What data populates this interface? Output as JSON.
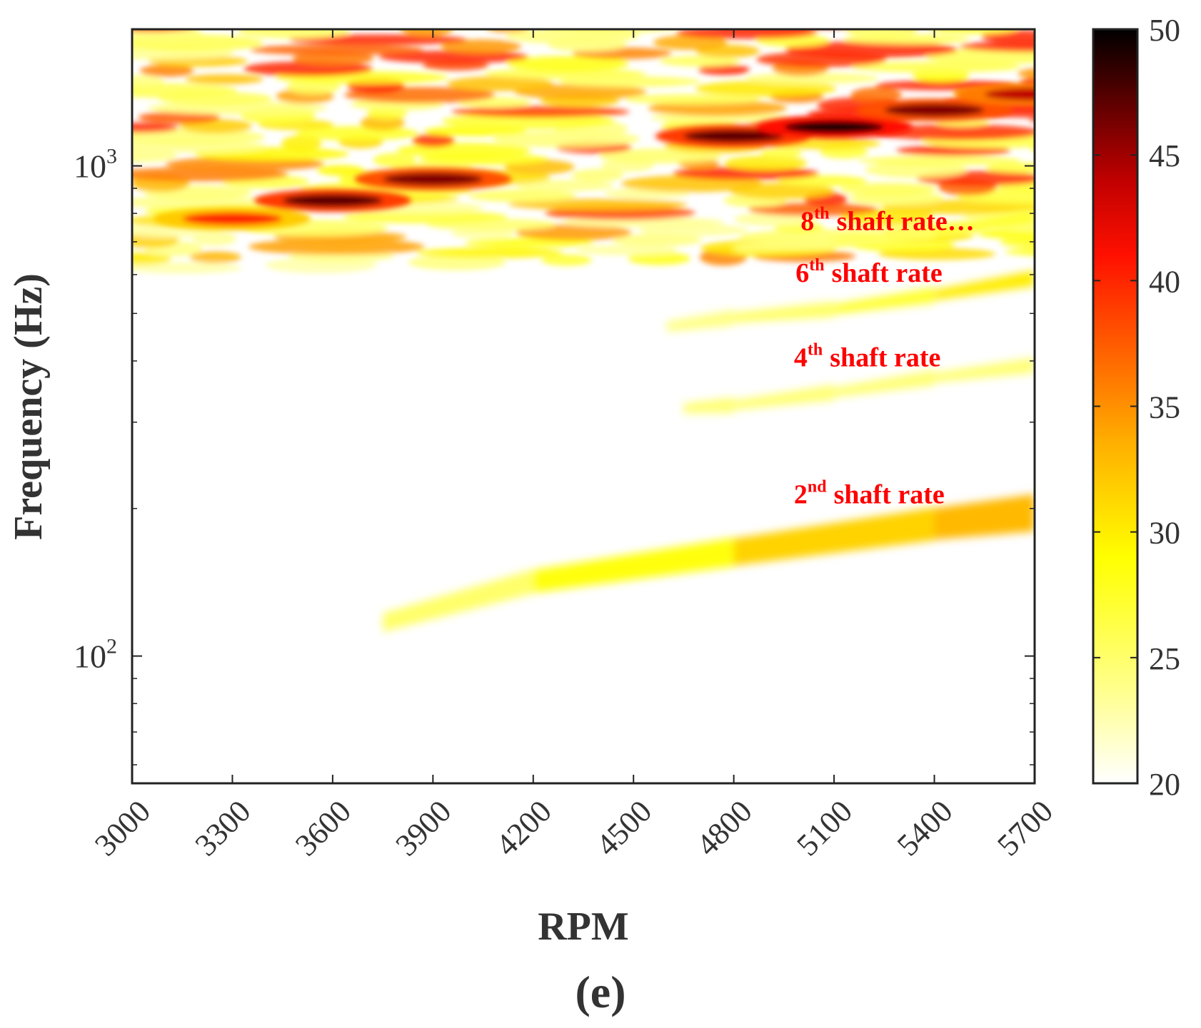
{
  "panel_label": "(e)",
  "chart_data": {
    "type": "heatmap",
    "title": "",
    "xlabel": "RPM",
    "ylabel": "Frequency (Hz)",
    "x_ticks": [
      "3000",
      "3300",
      "3600",
      "3900",
      "4200",
      "4500",
      "4800",
      "5100",
      "5400",
      "5700"
    ],
    "xlim": [
      3000,
      5700
    ],
    "y_scale": "log",
    "ylim": [
      55,
      1900
    ],
    "y_ticks": [
      {
        "value": 100,
        "base": "10",
        "exp": "2"
      },
      {
        "value": 1000,
        "base": "10",
        "exp": "3"
      }
    ],
    "colorbar": {
      "min": 20,
      "max": 50,
      "ticks": [
        "20",
        "25",
        "30",
        "35",
        "40",
        "45",
        "50"
      ],
      "colormap": "hot (reversed)",
      "colors": [
        "#ffffff",
        "#ffff40",
        "#ffd000",
        "#ff8000",
        "#ff2000",
        "#c00000",
        "#600000",
        "#000000"
      ]
    },
    "annotations": [
      {
        "order": "8",
        "sup": "th",
        "text": "shaft rate…",
        "x_rpm": 5000,
        "y_hz": 740,
        "color": "#ff0000"
      },
      {
        "order": "6",
        "sup": "th",
        "text": "shaft rate",
        "x_rpm": 4985,
        "y_hz": 580,
        "color": "#ff0000"
      },
      {
        "order": "4",
        "sup": "th",
        "text": "shaft rate",
        "x_rpm": 4980,
        "y_hz": 390,
        "color": "#ff0000"
      },
      {
        "order": "2",
        "sup": "nd",
        "text": "shaft rate",
        "x_rpm": 4980,
        "y_hz": 205,
        "color": "#ff0000"
      }
    ],
    "ridges": [
      {
        "name": "2nd shaft rate",
        "rpm": [
          3750,
          4200,
          4800,
          5400,
          5700
        ],
        "freq_hz": [
          117,
          142,
          163,
          186,
          196
        ],
        "level": [
          23,
          27,
          30,
          33,
          33
        ]
      },
      {
        "name": "4th shaft rate",
        "rpm": [
          4650,
          4800,
          5100,
          5400,
          5700
        ],
        "freq_hz": [
          320,
          325,
          345,
          370,
          392
        ],
        "level": [
          24,
          25,
          24,
          25,
          24
        ]
      },
      {
        "name": "6th shaft rate",
        "rpm": [
          4600,
          4800,
          5100,
          5400,
          5700
        ],
        "freq_hz": [
          470,
          490,
          510,
          545,
          590
        ],
        "level": [
          24,
          24,
          26,
          28,
          32
        ]
      },
      {
        "name": "8th shaft rate",
        "rpm": [
          4800,
          5100,
          5400,
          5700
        ],
        "freq_hz": [
          680,
          700,
          730,
          790
        ],
        "level": [
          24,
          25,
          26,
          28
        ]
      }
    ],
    "hot_spots": [
      {
        "rpm": 3600,
        "freq_hz": 850,
        "level": 47
      },
      {
        "rpm": 3900,
        "freq_hz": 940,
        "level": 46
      },
      {
        "rpm": 4800,
        "freq_hz": 1150,
        "level": 47
      },
      {
        "rpm": 5100,
        "freq_hz": 1200,
        "level": 49
      },
      {
        "rpm": 5400,
        "freq_hz": 1300,
        "level": 46
      },
      {
        "rpm": 5700,
        "freq_hz": 1400,
        "level": 44
      },
      {
        "rpm": 3300,
        "freq_hz": 780,
        "level": 40
      }
    ]
  }
}
